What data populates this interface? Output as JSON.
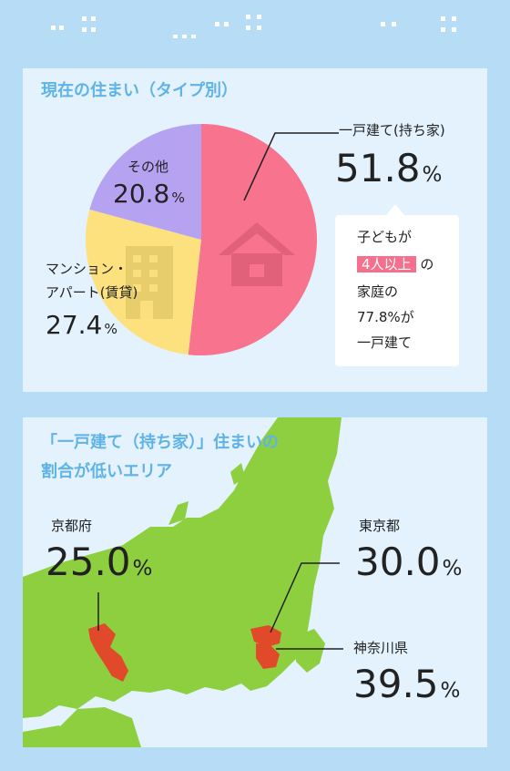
{
  "section_pie": {
    "title": "現在の住まい（タイプ別）",
    "slices": [
      {
        "label": "一戸建て(持ち家)",
        "value": "51.8",
        "unit": "%",
        "color": "#f7738e"
      },
      {
        "label_line1": "マンション・",
        "label_line2": "アパート(賃貸)",
        "value": "27.4",
        "unit": "%",
        "color": "#fde17e"
      },
      {
        "label": "その他",
        "value": "20.8",
        "unit": "%",
        "color": "#b5a3f2"
      }
    ],
    "callout": {
      "line1": "子どもが",
      "badge": "4人以上",
      "badge_suffix": "の",
      "line3": "家庭の",
      "line4": "77.8%が",
      "line5": "一戸建て"
    }
  },
  "section_map": {
    "title_line1": "「一戸建て（持ち家）」住まいの",
    "title_line2": "割合が低いエリア",
    "areas": [
      {
        "name": "京都府",
        "value": "25.0",
        "unit": "%"
      },
      {
        "name": "東京都",
        "value": "30.0",
        "unit": "%"
      },
      {
        "name": "神奈川県",
        "value": "39.5",
        "unit": "%"
      }
    ],
    "land_color": "#8dcf3f",
    "highlight_color": "#e0492a"
  },
  "chart_data": {
    "type": "pie",
    "title": "現在の住まい（タイプ別）",
    "categories": [
      "一戸建て(持ち家)",
      "マンション・アパート(賃貸)",
      "その他"
    ],
    "values": [
      51.8,
      27.4,
      20.8
    ]
  }
}
